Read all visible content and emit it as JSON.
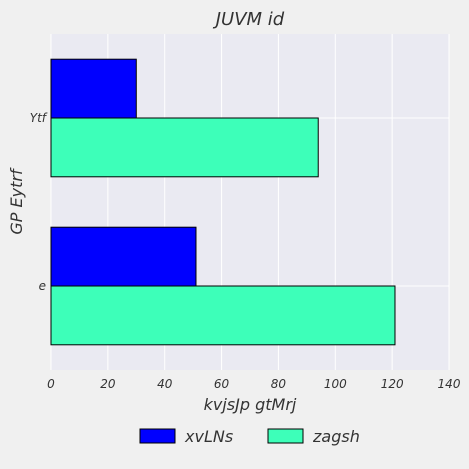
{
  "chart_data": {
    "type": "bar",
    "orientation": "horizontal",
    "title": "JUVM id",
    "xlabel": "kvjsJp gtMrj",
    "ylabel": "GP Eytrf",
    "categories": [
      "Ytf",
      "e"
    ],
    "series": [
      {
        "name": "xvLNs",
        "values": [
          30,
          51
        ],
        "color": "#0000ff"
      },
      {
        "name": "zagsh",
        "values": [
          94,
          121
        ],
        "color": "#3dffb9"
      }
    ],
    "xlim": [
      0,
      140
    ],
    "xticks": [
      0,
      20,
      40,
      60,
      80,
      100,
      120,
      140
    ],
    "grid": true,
    "legend": "bottom-center",
    "colors": {
      "plot_bg": "#eaeaf2",
      "figure_bg": "#f0f0f0",
      "grid": "#ffffff",
      "edge": "#000000",
      "text": "#333333"
    }
  }
}
